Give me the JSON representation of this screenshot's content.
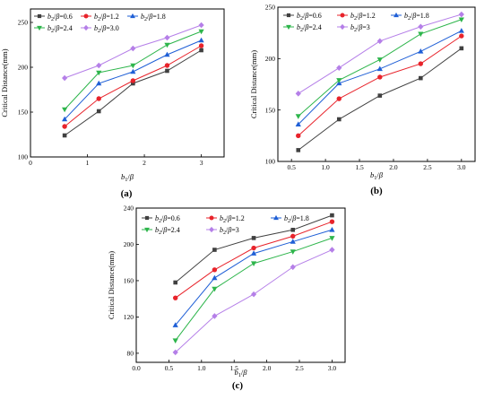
{
  "chart_data": [
    {
      "type": "line",
      "panel_label": "(a)",
      "xlabel": "b₁/β",
      "ylabel": "Critical Distance(mm)",
      "xlim": [
        0,
        3.4
      ],
      "ylim": [
        100,
        265
      ],
      "xticks": [
        "0",
        "1",
        "2",
        "3"
      ],
      "yticks": [
        "100",
        "150",
        "200",
        "250"
      ],
      "x": [
        0.6,
        1.2,
        1.8,
        2.4,
        3.0
      ],
      "legend_placement": "top-left",
      "series": [
        {
          "name": "b₂/β=0.6",
          "color": "#404040",
          "marker": "square",
          "values": [
            124,
            151,
            182,
            196,
            219
          ]
        },
        {
          "name": "b₂/β=1.2",
          "color": "#e8232b",
          "marker": "circle",
          "values": [
            134,
            165,
            185,
            202,
            224
          ]
        },
        {
          "name": "b₂/β=1.8",
          "color": "#1f5fd6",
          "marker": "triangle-up",
          "values": [
            142,
            182,
            195,
            214,
            230
          ]
        },
        {
          "name": "b₂/β=2.4",
          "color": "#2db54b",
          "marker": "triangle-down",
          "values": [
            153,
            194,
            202,
            225,
            240
          ]
        },
        {
          "name": "b₂/β=3.0",
          "color": "#b57fe8",
          "marker": "diamond",
          "values": [
            188,
            202,
            221,
            233,
            247
          ]
        }
      ]
    },
    {
      "type": "line",
      "panel_label": "(b)",
      "xlabel": "b₁/β",
      "ylabel": "Critical Distance(mm)",
      "xlim": [
        0.3,
        3.2
      ],
      "ylim": [
        100,
        250
      ],
      "xticks": [
        "0.5",
        "1.0",
        "1.5",
        "2.0",
        "2.5",
        "3.0"
      ],
      "yticks": [
        "100",
        "150",
        "200",
        "250"
      ],
      "x": [
        0.6,
        1.2,
        1.8,
        2.4,
        3.0
      ],
      "legend_placement": "top-left",
      "series": [
        {
          "name": "b₂/β=0.6",
          "color": "#404040",
          "marker": "square",
          "values": [
            111,
            141,
            164,
            181,
            210
          ]
        },
        {
          "name": "b₂/β=1.2",
          "color": "#e8232b",
          "marker": "circle",
          "values": [
            125,
            161,
            182,
            195,
            222
          ]
        },
        {
          "name": "b₂/β=1.8",
          "color": "#1f5fd6",
          "marker": "triangle-up",
          "values": [
            136,
            176,
            190,
            207,
            227
          ]
        },
        {
          "name": "b₂/β=2.4",
          "color": "#2db54b",
          "marker": "triangle-down",
          "values": [
            144,
            179,
            199,
            224,
            238
          ]
        },
        {
          "name": "b₂/β=3",
          "color": "#b57fe8",
          "marker": "diamond",
          "values": [
            166,
            191,
            217,
            231,
            243
          ]
        }
      ]
    },
    {
      "type": "line",
      "panel_label": "(c)",
      "xlabel": "b₁/β",
      "ylabel": "Critical Distance(mm)",
      "xlim": [
        0,
        3.2
      ],
      "ylim": [
        70,
        240
      ],
      "xticks": [
        "0.0",
        "0.5",
        "1.0",
        "1.5",
        "2.0",
        "2.5",
        "3.0"
      ],
      "yticks": [
        "80",
        "120",
        "160",
        "200",
        "240"
      ],
      "x": [
        0.6,
        1.2,
        1.8,
        2.4,
        3.0
      ],
      "legend_placement": "top-left",
      "series": [
        {
          "name": "b₂/β=0.6",
          "color": "#404040",
          "marker": "square",
          "values": [
            158,
            194,
            207,
            216,
            232
          ]
        },
        {
          "name": "b₂/β=1.2",
          "color": "#e8232b",
          "marker": "circle",
          "values": [
            141,
            172,
            196,
            209,
            225
          ]
        },
        {
          "name": "b₂/β=1.8",
          "color": "#1f5fd6",
          "marker": "triangle-up",
          "values": [
            111,
            163,
            190,
            203,
            216
          ]
        },
        {
          "name": "b₂/β=2.4",
          "color": "#2db54b",
          "marker": "triangle-down",
          "values": [
            94,
            151,
            179,
            192,
            207
          ]
        },
        {
          "name": "b₂/β=3",
          "color": "#b57fe8",
          "marker": "diamond",
          "values": [
            81,
            121,
            145,
            175,
            194
          ]
        }
      ]
    }
  ]
}
